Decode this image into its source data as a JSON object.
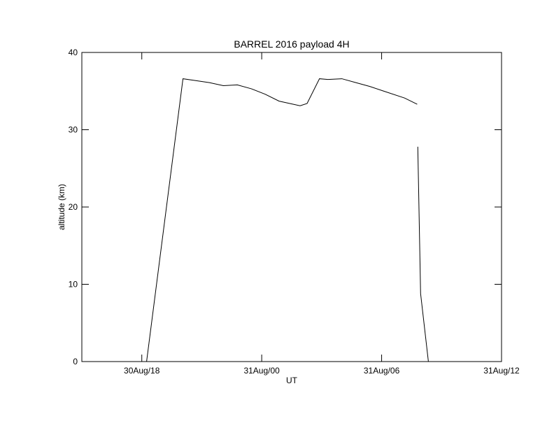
{
  "chart_data": {
    "type": "line",
    "title": "BARREL 2016 payload 4H",
    "x_label": "UT",
    "y_label": "altitude (km)",
    "x": [
      17.02,
      18.24,
      20.06,
      20.58,
      21.38,
      22.08,
      22.78,
      23.48,
      24.17,
      24.87,
      25.92,
      26.27,
      26.89,
      27.31,
      28.01,
      28.71,
      29.41,
      30.1,
      31.15,
      31.78,
      31.81,
      31.81,
      31.95,
      32.34,
      32.82,
      32.9,
      33.03,
      34.46
    ],
    "series": [
      {
        "name": "altitude",
        "color": "#000000",
        "values": [
          0,
          0,
          36.6,
          36.4,
          36.1,
          35.7,
          35.8,
          35.3,
          34.6,
          33.7,
          33.1,
          33.4,
          36.6,
          36.5,
          36.6,
          36.1,
          35.6,
          35.0,
          34.1,
          33.3,
          null,
          27.8,
          8.8,
          0,
          0,
          null,
          0,
          0
        ]
      }
    ],
    "xlim": [
      15,
      36
    ],
    "xticks": [
      {
        "value": 18,
        "label": "30Aug/18"
      },
      {
        "value": 24,
        "label": "31Aug/00"
      },
      {
        "value": 30,
        "label": "31Aug/06"
      },
      {
        "value": 36,
        "label": "31Aug/12"
      }
    ],
    "ylim": [
      0,
      40
    ],
    "yticks": [
      0,
      10,
      20,
      30,
      40
    ]
  }
}
